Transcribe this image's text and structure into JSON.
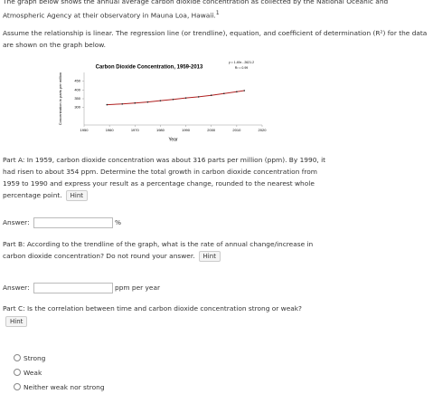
{
  "intro": {
    "text1": "The graph below shows the annual average carbon dioxide concentration as collected by the National Oceanic and Atmospheric Agency at their observatory in Mauna Loa, Hawaii.",
    "note": "1",
    "text2": "Assume the relationship is linear. The regression line (or trendline), equation, and coefficient of determination (R²) for the data are shown on the graph below."
  },
  "chart_data": {
    "type": "line",
    "title": "Carbon Dioxide Concentration, 1959-2013",
    "x_label": "Year",
    "y_label": "Concentration in parts per million",
    "annotations": [
      "y = 1.49x - 2621.2",
      "R² = 0.99"
    ],
    "x": [
      1959,
      1965,
      1970,
      1975,
      1980,
      1985,
      1990,
      1995,
      2000,
      2005,
      2010,
      2013
    ],
    "series": [
      {
        "name": "CO2",
        "color": "#b02020",
        "values": [
          315.97,
          320.04,
          325.68,
          331.11,
          338.75,
          346.12,
          354.39,
          360.82,
          369.55,
          379.8,
          389.9,
          396.52
        ]
      }
    ],
    "xlim": [
      1950,
      2020
    ],
    "xticks": [
      1950,
      1960,
      1970,
      1980,
      1990,
      2000,
      2010,
      2020
    ],
    "ylim": [
      200,
      500
    ],
    "yticks": [
      300,
      350,
      400,
      450
    ]
  },
  "partA": {
    "question": "Part A: In 1959, carbon dioxide concentration was about 316 parts per million (ppm). By 1990, it had risen to about 354 ppm. Determine the total growth in carbon dioxide concentration from 1959 to 1990 and express your result as a percentage change, rounded to the nearest whole percentage point.",
    "hint": "Hint",
    "answer_label": "Answer:",
    "unit": "%"
  },
  "partB": {
    "question": "Part B: According to the trendline of the graph, what is the rate of annual change/increase in carbon dioxide concentration? Do not round your answer.",
    "hint": "Hint",
    "answer_label": "Answer:",
    "unit": "ppm per year"
  },
  "partC": {
    "question": "Part C: Is the correlation between time and carbon dioxide concentration strong or weak?",
    "hint": "Hint",
    "options": [
      "Strong",
      "Weak",
      "Neither weak nor strong"
    ]
  }
}
